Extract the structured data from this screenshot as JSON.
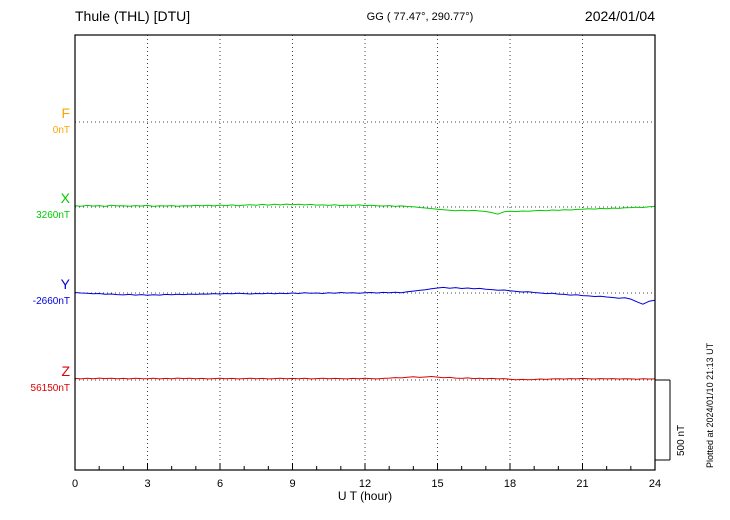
{
  "header": {
    "title": "Thule (THL)  [DTU]",
    "coords": "GG ( 77.47°, 290.77°)",
    "date": "2024/01/04"
  },
  "footer": {
    "plotted_at": "Plotted at 2024/01/10 21:13 UT"
  },
  "chart_data": {
    "type": "line",
    "title": "Thule (THL)  [DTU]",
    "subtitle": "GG ( 77.47°, 290.77°)",
    "date": "2024/01/04",
    "xlabel": "U T (hour)",
    "x_range": [
      0,
      24
    ],
    "x_ticks": [
      0,
      3,
      6,
      9,
      12,
      15,
      18,
      21,
      24
    ],
    "x_step_hours": 0.25,
    "grid": "dotted vertical lines every 3 h, dotted horizontal line at each series baseline",
    "scale_bar": {
      "label": "500 nT",
      "value_nT": 500
    },
    "series": [
      {
        "name": "F",
        "color": "#ffa500",
        "baseline_label": "0nT",
        "offsets_nT": []
      },
      {
        "name": "X",
        "color": "#00cc00",
        "baseline_label": "3260nT",
        "offsets_nT": [
          8,
          5,
          10,
          6,
          9,
          4,
          11,
          7,
          8,
          5,
          9,
          6,
          10,
          4,
          8,
          6,
          9,
          5,
          8,
          7,
          10,
          8,
          11,
          7,
          12,
          9,
          13,
          8,
          12,
          14,
          11,
          16,
          12,
          17,
          13,
          18,
          14,
          17,
          13,
          16,
          12,
          13,
          10,
          14,
          9,
          12,
          10,
          13,
          9,
          11,
          8,
          6,
          9,
          4,
          7,
          3,
          1,
          -3,
          -6,
          -10,
          -14,
          -17,
          -20,
          -23,
          -20,
          -24,
          -21,
          -25,
          -28,
          -35,
          -45,
          -30,
          -26,
          -29,
          -25,
          -27,
          -24,
          -21,
          -23,
          -19,
          -21,
          -17,
          -19,
          -15,
          -14,
          -11,
          -13,
          -9,
          -11,
          -7,
          -9,
          -5,
          -4,
          -1,
          -3,
          1,
          4
        ]
      },
      {
        "name": "Y",
        "color": "#0000dd",
        "baseline_label": "-2660nT",
        "offsets_nT": [
          3,
          0,
          -2,
          -5,
          -3,
          -8,
          -6,
          -10,
          -12,
          -9,
          -13,
          -10,
          -14,
          -11,
          -13,
          -9,
          -11,
          -8,
          -10,
          -7,
          -9,
          -6,
          -7,
          -4,
          -6,
          -3,
          -5,
          -2,
          -4,
          -6,
          -3,
          -5,
          -2,
          -5,
          -1,
          -4,
          0,
          -3,
          1,
          -2,
          0,
          -3,
          2,
          -1,
          3,
          0,
          2,
          -1,
          1,
          3,
          0,
          4,
          1,
          5,
          2,
          8,
          12,
          16,
          20,
          26,
          31,
          35,
          30,
          34,
          28,
          31,
          26,
          29,
          24,
          21,
          17,
          19,
          14,
          10,
          6,
          8,
          3,
          0,
          -4,
          -2,
          -7,
          -9,
          -13,
          -11,
          -16,
          -18,
          -22,
          -20,
          -25,
          -28,
          -33,
          -30,
          -38,
          -55,
          -70,
          -52,
          -45
        ]
      },
      {
        "name": "Z",
        "color": "#dd0000",
        "baseline_label": "56150nT",
        "offsets_nT": [
          10,
          7,
          11,
          8,
          12,
          9,
          11,
          8,
          10,
          7,
          11,
          9,
          8,
          11,
          7,
          10,
          8,
          12,
          9,
          11,
          8,
          10,
          7,
          9,
          11,
          8,
          10,
          7,
          9,
          11,
          8,
          10,
          7,
          9,
          11,
          8,
          10,
          8,
          11,
          7,
          9,
          11,
          8,
          10,
          9,
          7,
          10,
          8,
          11,
          9,
          7,
          10,
          12,
          15,
          13,
          17,
          20,
          16,
          19,
          22,
          18,
          14,
          16,
          12,
          10,
          13,
          9,
          11,
          8,
          10,
          7,
          9,
          5,
          2,
          4,
          1,
          3,
          6,
          4,
          7,
          8,
          6,
          9,
          7,
          10,
          8,
          6,
          9,
          7,
          9,
          6,
          8,
          7,
          5,
          8,
          6,
          7
        ]
      }
    ]
  }
}
